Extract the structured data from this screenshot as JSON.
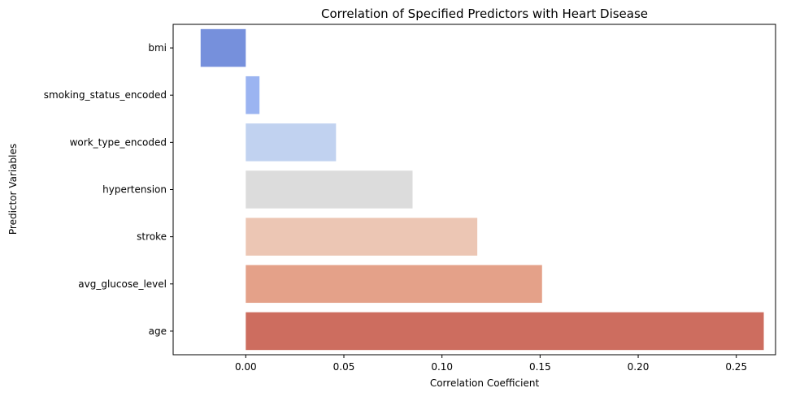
{
  "chart_data": {
    "type": "bar",
    "orientation": "horizontal",
    "title": "Correlation of Specified Predictors with Heart Disease",
    "xlabel": "Correlation Coefficient",
    "ylabel": "Predictor Variables",
    "categories": [
      "bmi",
      "smoking_status_encoded",
      "work_type_encoded",
      "hypertension",
      "stroke",
      "avg_glucose_level",
      "age"
    ],
    "values": [
      -0.023,
      0.007,
      0.046,
      0.085,
      0.118,
      0.151,
      0.264
    ],
    "colors": [
      "#7690dc",
      "#9bb4f1",
      "#c1d2f0",
      "#dcdcdc",
      "#ecc6b4",
      "#e4a189",
      "#cd6d5f"
    ],
    "xlim": [
      -0.037,
      0.27
    ],
    "xticks": [
      0.0,
      0.05,
      0.1,
      0.15,
      0.2,
      0.25
    ],
    "xtick_labels": [
      "0.00",
      "0.05",
      "0.10",
      "0.15",
      "0.20",
      "0.25"
    ],
    "grid": false,
    "legend": "none"
  }
}
